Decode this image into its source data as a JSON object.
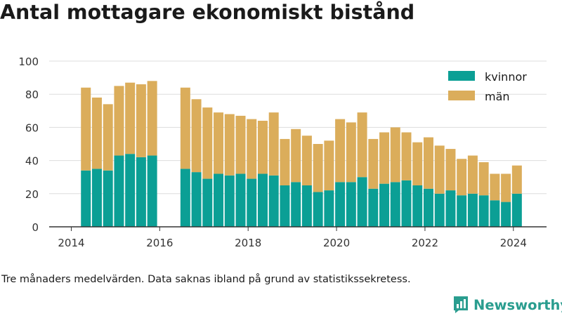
{
  "title": "Antal mottagare ekonomiskt bistånd",
  "footnote": "Tre månaders medelvärden. Data saknas ibland på grund av statistikssekretess.",
  "brand": {
    "name": "Newsworthy"
  },
  "colors": {
    "kvinnor": "#0b9f95",
    "man": "#dbad5b",
    "grid": "#dddddd",
    "axis": "#333333",
    "text": "#333333",
    "brand": "#2a9d8f"
  },
  "chart_data": {
    "type": "bar",
    "stacked": true,
    "xlim": [
      2013.5,
      2024.75
    ],
    "ylim": [
      0,
      100
    ],
    "yticks": [
      0,
      20,
      40,
      60,
      80,
      100
    ],
    "xticks": [
      "2014",
      "2016",
      "2018",
      "2020",
      "2022",
      "2024"
    ],
    "grid": true,
    "legend": "top-right",
    "x": [
      2014.33,
      2014.58,
      2014.83,
      2015.08,
      2015.33,
      2015.58,
      2015.83,
      2016.58,
      2016.83,
      2017.08,
      2017.33,
      2017.58,
      2017.83,
      2018.08,
      2018.33,
      2018.58,
      2018.83,
      2019.08,
      2019.33,
      2019.58,
      2019.83,
      2020.08,
      2020.33,
      2020.58,
      2020.83,
      2021.08,
      2021.33,
      2021.58,
      2021.83,
      2022.08,
      2022.33,
      2022.58,
      2022.83,
      2023.08,
      2023.33,
      2023.58,
      2023.83,
      2024.08
    ],
    "series": [
      {
        "name": "kvinnor",
        "values": [
          34,
          35,
          34,
          43,
          44,
          42,
          43,
          35,
          33,
          29,
          32,
          31,
          32,
          29,
          32,
          31,
          25,
          27,
          25,
          21,
          22,
          27,
          27,
          30,
          23,
          26,
          27,
          28,
          25,
          23,
          20,
          22,
          19,
          20,
          19,
          16,
          15,
          20
        ]
      },
      {
        "name": "män",
        "values": [
          50,
          43,
          40,
          42,
          43,
          44,
          45,
          49,
          44,
          43,
          37,
          37,
          35,
          36,
          32,
          38,
          28,
          32,
          30,
          29,
          30,
          38,
          36,
          39,
          30,
          31,
          33,
          29,
          26,
          31,
          29,
          25,
          22,
          23,
          20,
          16,
          17,
          17
        ]
      }
    ]
  }
}
